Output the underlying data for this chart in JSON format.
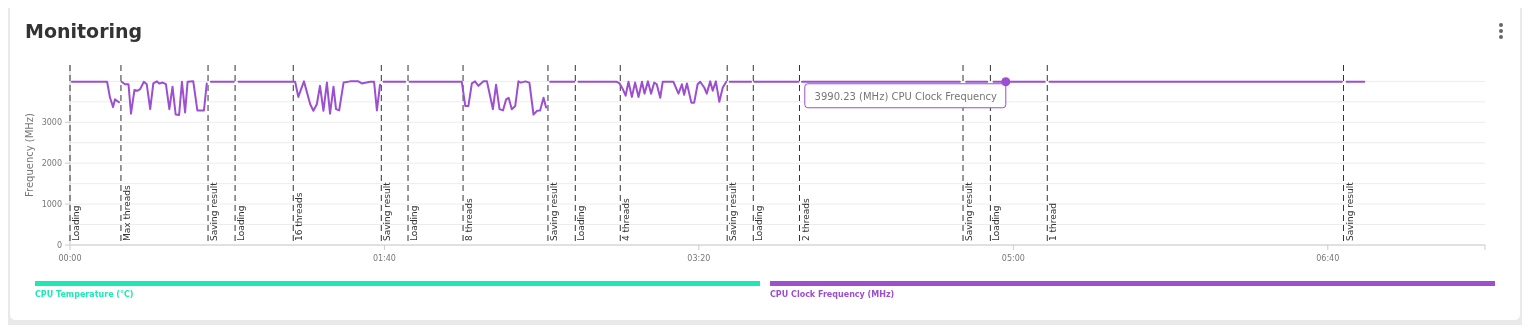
{
  "chart_data": {
    "type": "line",
    "title": "Monitoring",
    "ylabel": "Frequency (MHz)",
    "xlim": [
      0,
      450
    ],
    "xticks": [
      {
        "value": 0,
        "label": "00:00"
      },
      {
        "value": 100,
        "label": "01:40"
      },
      {
        "value": 200,
        "label": "03:20"
      },
      {
        "value": 300,
        "label": "05:00"
      },
      {
        "value": 400,
        "label": "06:40"
      }
    ],
    "ylim": [
      0,
      4400
    ],
    "yticks": [
      0,
      {
        "value": 500,
        "label": null
      },
      1000,
      {
        "value": 1500,
        "label": null
      },
      2000,
      {
        "value": 2500,
        "label": null
      },
      3000,
      {
        "value": 3500,
        "label": null
      },
      {
        "value": 4000,
        "label": null
      }
    ],
    "grid": "y",
    "legend": "bottom",
    "marker": "none",
    "line_style": "solid",
    "series": [
      {
        "name": "CPU Temperature (°C)",
        "color": "#1de9b6"
      },
      {
        "name": "CPU Clock Frequency (MHz)",
        "color": "#9c4fd0",
        "x": [
          0.6,
          11.8,
          12.7,
          13.7,
          14.3,
          15.6,
          15.9,
          16.4,
          17.5,
          18.6,
          19.4,
          20.5,
          21.4,
          22.3,
          23.5,
          24.4,
          25.5,
          26.5,
          27.6,
          28.4,
          29.5,
          30.5,
          31.6,
          32.6,
          33.6,
          34.7,
          35.6,
          36.6,
          37.4,
          39.2,
          40.5,
          42.6,
          43.5,
          44.1,
          44.8,
          52.1,
          52.9,
          53.6,
          70.8,
          71.6,
          72.6,
          74.4,
          76.4,
          77.4,
          78.5,
          79.5,
          80.6,
          81.7,
          82.7,
          83.8,
          84.6,
          85.6,
          87.0,
          89.1,
          91.7,
          92.8,
          95.4,
          96.7,
          97.6,
          98.6,
          99.2,
          99.7,
          106.6,
          107.1,
          108,
          124.6,
          125.7,
          126.7,
          127.8,
          128.8,
          129.9,
          131.5,
          132.6,
          134.5,
          135.5,
          136.6,
          137.7,
          138.7,
          139.5,
          140.5,
          141.6,
          142.6,
          143.4,
          144.8,
          146.1,
          147.4,
          148.5,
          149.5,
          150.6,
          151.4,
          152.1,
          152.7,
          160.4,
          161,
          161.7,
          173.9,
          174.8,
          175.8,
          176.7,
          177.6,
          178.7,
          179.7,
          180.8,
          181.9,
          182.7,
          183.8,
          184.8,
          185.8,
          186.6,
          187.7,
          188.5,
          191.9,
          193.5,
          194.6,
          195.3,
          196.2,
          197.6,
          198.5,
          199.6,
          200.4,
          201.7,
          202.5,
          203.6,
          204.4,
          205.4,
          206.5,
          207.6,
          208.7,
          209.2,
          209.8,
          216.6,
          217.1,
          217.6,
          231.7,
          232.2,
          232.8,
          283,
          284,
          285,
          291.7,
          292.7,
          293.7,
          297.6,
          310,
          310.8,
          311.5,
          404.5,
          405.2,
          406,
          411.6
        ],
        "values": [
          3990,
          3990,
          3610,
          3370,
          3560,
          3490,
          null,
          3990,
          3930,
          3930,
          3210,
          3790,
          3770,
          3810,
          3990,
          3930,
          3320,
          3950,
          4000,
          3950,
          3970,
          3930,
          3320,
          3870,
          3190,
          3180,
          3990,
          3240,
          3990,
          4000,
          3290,
          3290,
          3950,
          null,
          3990,
          3990,
          null,
          3990,
          3990,
          3990,
          3620,
          4000,
          3440,
          3280,
          3440,
          3890,
          3280,
          3970,
          3210,
          3870,
          3320,
          3290,
          3970,
          4000,
          4000,
          3950,
          3990,
          3990,
          3290,
          3920,
          null,
          3990,
          3990,
          null,
          3990,
          3990,
          3400,
          3400,
          3950,
          4000,
          3890,
          4000,
          4000,
          3320,
          3920,
          3320,
          3290,
          3560,
          3600,
          3320,
          3400,
          4000,
          3970,
          4000,
          3970,
          3190,
          3280,
          3290,
          3600,
          3360,
          null,
          3990,
          3990,
          null,
          3990,
          3990,
          3950,
          3810,
          3650,
          3990,
          3620,
          3970,
          3620,
          3990,
          3700,
          4000,
          3700,
          3970,
          3930,
          3600,
          3990,
          3990,
          3700,
          3930,
          3670,
          3950,
          3480,
          3480,
          3930,
          3990,
          3850,
          3700,
          4000,
          3770,
          4000,
          3500,
          3850,
          3990,
          null,
          3990,
          3990,
          null,
          3990,
          3990,
          null,
          3990,
          3990,
          null,
          3990,
          3990,
          null,
          3990,
          3990,
          3990,
          null,
          3990,
          3990,
          null,
          3990,
          3990
        ]
      }
    ],
    "ref_lines": [
      {
        "axis": "x",
        "value": 0,
        "label": "Loading"
      },
      {
        "axis": "x",
        "value": 16.2,
        "label": "Max threads"
      },
      {
        "axis": "x",
        "value": 43.9,
        "label": "Saving result"
      },
      {
        "axis": "x",
        "value": 52.5,
        "label": "Loading"
      },
      {
        "axis": "x",
        "value": 71,
        "label": "16 threads"
      },
      {
        "axis": "x",
        "value": 99,
        "label": "Saving result"
      },
      {
        "axis": "x",
        "value": 107.5,
        "label": "Loading"
      },
      {
        "axis": "x",
        "value": 125,
        "label": "8 threads"
      },
      {
        "axis": "x",
        "value": 152,
        "label": "Saving result"
      },
      {
        "axis": "x",
        "value": 160.7,
        "label": "Loading"
      },
      {
        "axis": "x",
        "value": 175,
        "label": "4 threads"
      },
      {
        "axis": "x",
        "value": 209,
        "label": "Saving result"
      },
      {
        "axis": "x",
        "value": 217.3,
        "label": "Loading"
      },
      {
        "axis": "x",
        "value": 232,
        "label": "2 threads"
      },
      {
        "axis": "x",
        "value": 284,
        "label": "Saving result"
      },
      {
        "axis": "x",
        "value": 292.7,
        "label": "Loading"
      },
      {
        "axis": "x",
        "value": 310.8,
        "label": "1 thread"
      },
      {
        "axis": "x",
        "value": 405,
        "label": "Saving result"
      }
    ],
    "annotations": [
      {
        "text": "3990.23 (MHz) CPU Clock Frequency",
        "x": 297.6,
        "y": 3990.23
      }
    ]
  }
}
